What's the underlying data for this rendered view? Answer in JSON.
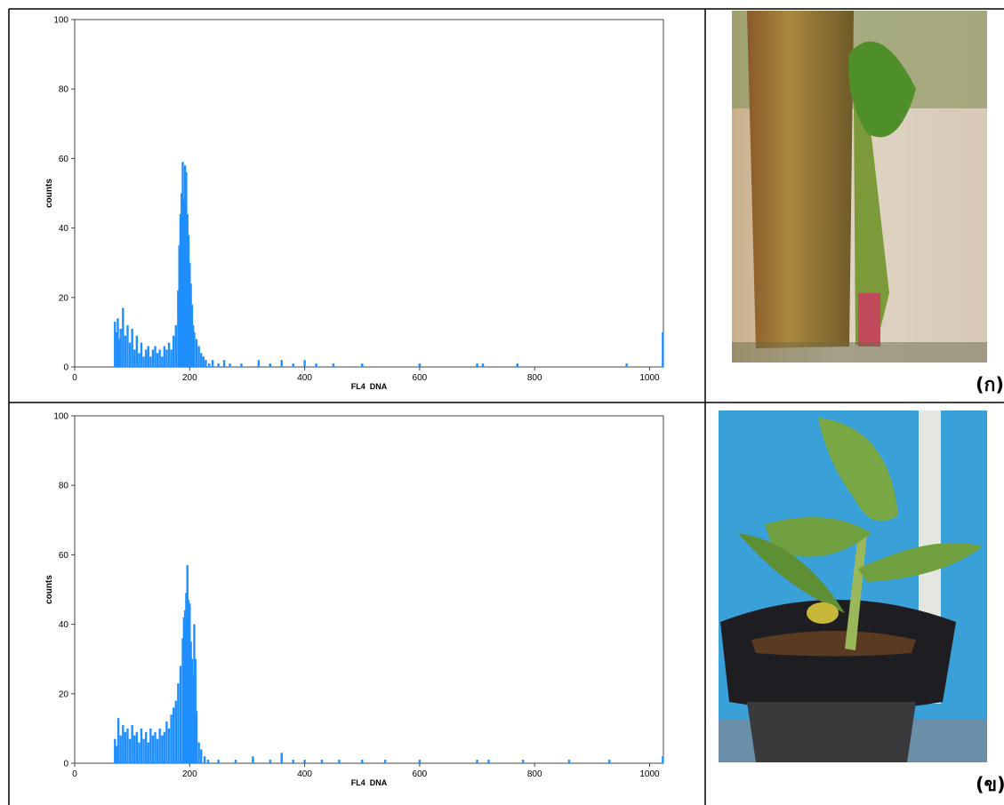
{
  "chart_data": [
    {
      "type": "bar",
      "xlabel": "FL4  DNA",
      "ylabel": "counts",
      "xlim": [
        0,
        1024
      ],
      "ylim": [
        0,
        100
      ],
      "xticks": [
        0,
        200,
        400,
        600,
        800,
        1000
      ],
      "yticks": [
        0,
        20,
        40,
        60,
        80,
        100
      ],
      "color": "#1f8fff",
      "x": [
        70,
        72,
        75,
        78,
        80,
        84,
        88,
        92,
        96,
        100,
        104,
        108,
        112,
        116,
        120,
        124,
        128,
        132,
        136,
        140,
        144,
        148,
        152,
        156,
        160,
        164,
        168,
        172,
        176,
        180,
        182,
        184,
        186,
        188,
        190,
        192,
        194,
        196,
        198,
        200,
        202,
        204,
        206,
        208,
        212,
        216,
        220,
        224,
        228,
        234,
        240,
        250,
        260,
        270,
        290,
        320,
        340,
        360,
        380,
        400,
        420,
        450,
        500,
        600,
        700,
        710,
        770,
        960,
        1023
      ],
      "values": [
        13,
        10,
        14,
        8,
        11,
        17,
        9,
        12,
        7,
        11,
        5,
        9,
        4,
        7,
        3,
        5,
        6,
        3,
        5,
        6,
        4,
        5,
        3,
        6,
        5,
        7,
        5,
        9,
        12,
        22,
        35,
        44,
        50,
        59,
        48,
        58,
        56,
        44,
        38,
        30,
        24,
        18,
        12,
        10,
        8,
        6,
        4,
        3,
        2,
        1,
        2,
        1,
        2,
        1,
        1,
        2,
        1,
        2,
        1,
        2,
        1,
        1,
        1,
        1,
        1,
        1,
        1,
        1,
        10
      ]
    },
    {
      "type": "bar",
      "xlabel": "FL4  DNA",
      "ylabel": "counts",
      "xlim": [
        0,
        1024
      ],
      "ylim": [
        0,
        100
      ],
      "xticks": [
        0,
        200,
        400,
        600,
        800,
        1000
      ],
      "yticks": [
        0,
        20,
        40,
        60,
        80,
        100
      ],
      "color": "#1f8fff",
      "x": [
        70,
        73,
        76,
        80,
        84,
        88,
        92,
        96,
        100,
        104,
        108,
        112,
        116,
        120,
        124,
        128,
        132,
        136,
        140,
        144,
        148,
        152,
        156,
        160,
        164,
        168,
        172,
        176,
        180,
        184,
        188,
        190,
        192,
        194,
        196,
        198,
        200,
        202,
        204,
        206,
        208,
        210,
        212,
        216,
        220,
        226,
        232,
        250,
        280,
        310,
        340,
        360,
        380,
        400,
        430,
        460,
        500,
        540,
        600,
        700,
        720,
        780,
        860,
        930,
        1023
      ],
      "values": [
        7,
        5,
        13,
        8,
        11,
        9,
        10,
        7,
        11,
        8,
        9,
        6,
        10,
        7,
        9,
        6,
        10,
        8,
        9,
        7,
        10,
        8,
        9,
        12,
        10,
        14,
        16,
        18,
        23,
        28,
        36,
        42,
        44,
        49,
        57,
        47,
        46,
        35,
        30,
        25,
        40,
        30,
        15,
        6,
        4,
        2,
        1,
        1,
        1,
        2,
        1,
        3,
        1,
        1,
        1,
        1,
        1,
        1,
        1,
        1,
        1,
        1,
        1,
        1,
        2
      ]
    }
  ],
  "panels": [
    "(ก)",
    "(ข)"
  ]
}
